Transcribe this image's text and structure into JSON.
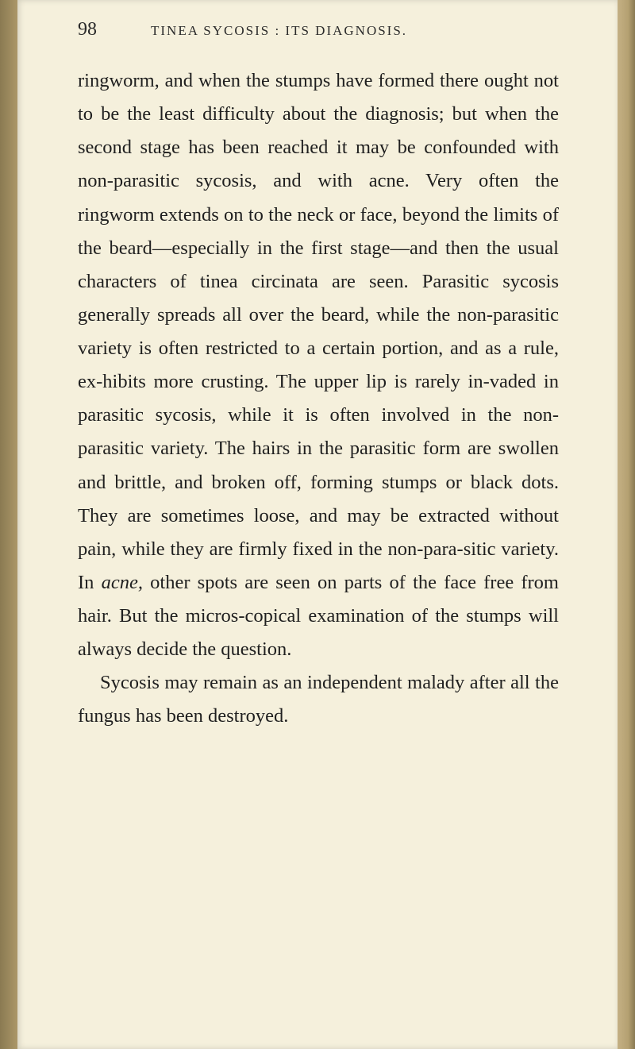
{
  "header": {
    "page_number": "98",
    "running_title": "TINEA SYCOSIS : ITS DIAGNOSIS."
  },
  "paragraphs": {
    "p1_part1": "ringworm, and when the stumps have formed there ought not to be the least difficulty about the diagnosis; but when the second stage has been reached it may be confounded with non-parasitic sycosis, and with acne. Very often the ringworm extends on to the neck or face, beyond the limits of the beard—especially in the first stage—and then the usual characters of tinea circinata are seen. Parasitic sycosis generally spreads all over the beard, while the non-parasitic variety is often restricted to a certain portion, and as a rule, ex-hibits more crusting. The upper lip is rarely in-vaded in parasitic sycosis, while it is often involved in the non-parasitic variety. The hairs in the parasitic form are swollen and brittle, and broken off, forming stumps or black dots. They are sometimes loose, and may be extracted without pain, while they are firmly fixed in the non-para-sitic variety. In ",
    "p1_italic": "acne,",
    "p1_part2": " other spots are seen on parts of the face free from hair. But the micros-copical examination of the stumps will always decide the question.",
    "p2": "Sycosis may remain as an independent malady after all the fungus has been destroyed."
  },
  "colors": {
    "page_bg": "#f5f0dc",
    "outer_bg": "#bea877",
    "text": "#1f1f1f"
  }
}
